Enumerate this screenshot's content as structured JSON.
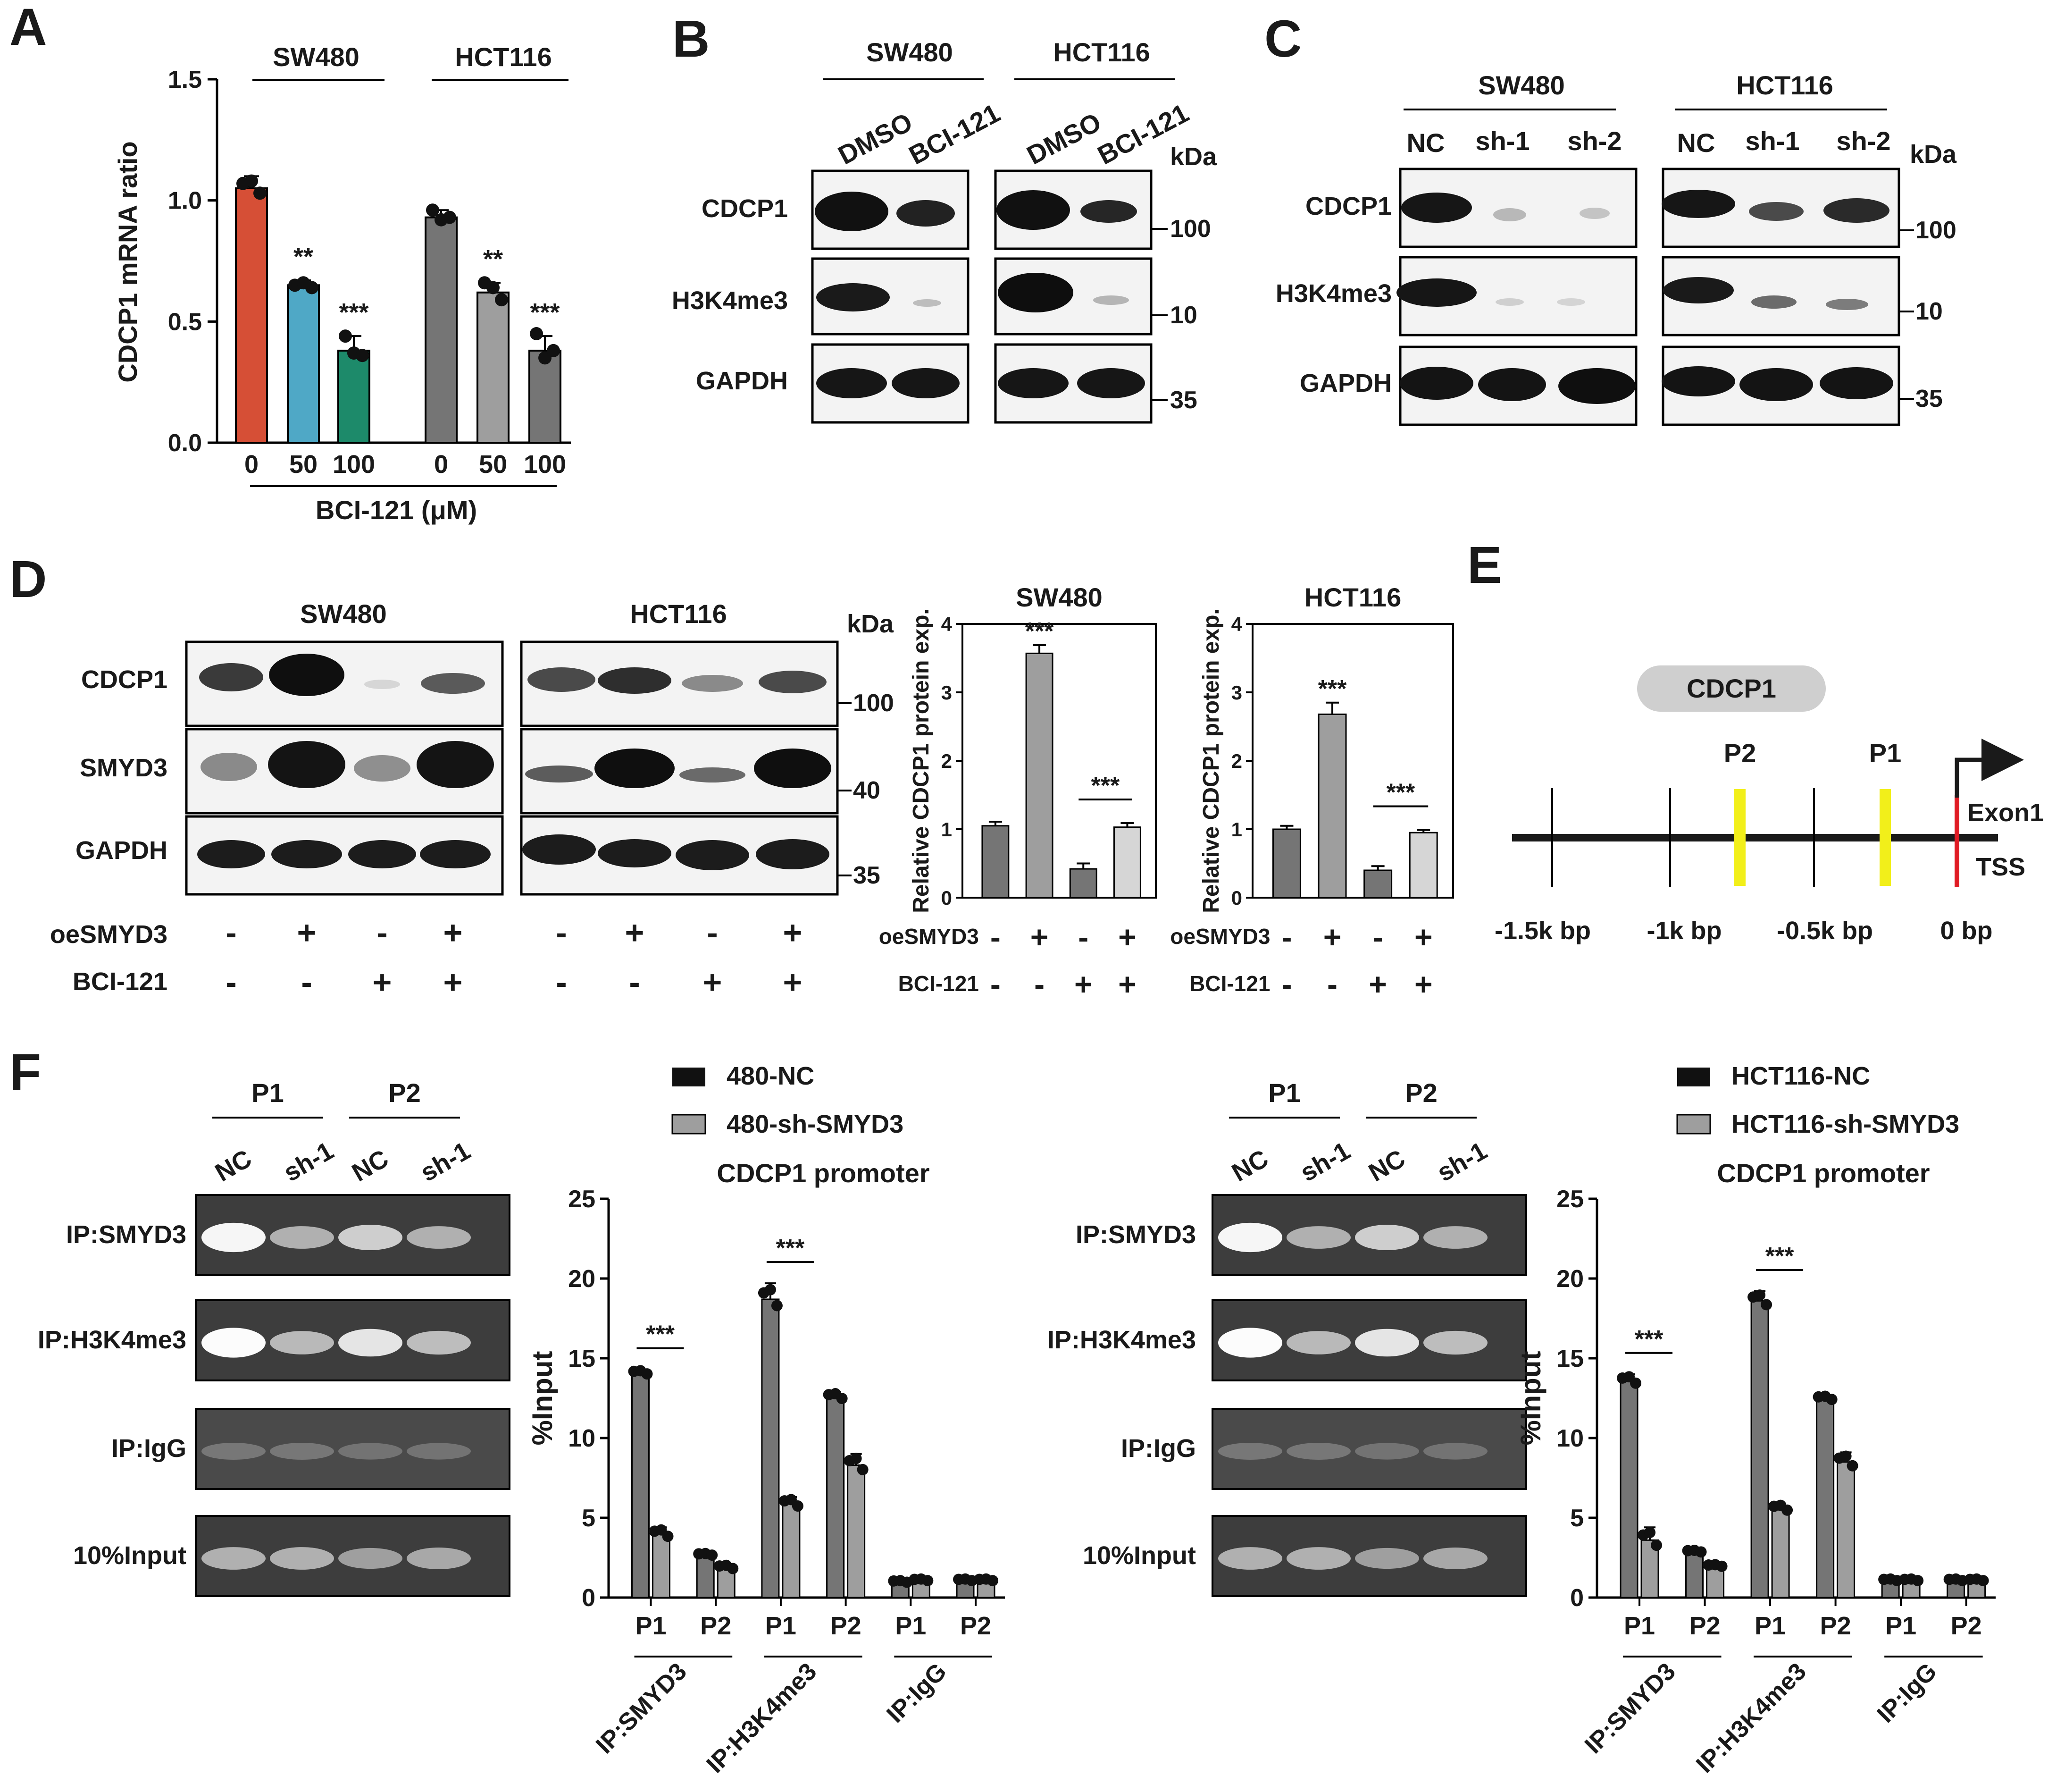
{
  "panel_letters": [
    "A",
    "B",
    "C",
    "D",
    "E",
    "F"
  ],
  "colors": {
    "red": "#d64f36",
    "blue": "#4fa8c6",
    "green": "#1d8a6a",
    "dark_gray": "#757575",
    "mid_gray": "#9e9e9e",
    "light_gray": "#d6d6d6",
    "marker_yellow": "#f2ef1a",
    "tss_red": "#e01b24",
    "pill": "#cfcfcf"
  },
  "panelA": {
    "group_labels": [
      "SW480",
      "HCT116"
    ],
    "ylabel": "CDCP1 mRNA ratio",
    "xlabel": "BCI-121 (μM)",
    "tick_labels": [
      "0.0",
      "0.5",
      "1.0",
      "1.5"
    ]
  },
  "panelB": {
    "groups": [
      "SW480",
      "HCT116"
    ],
    "lanes": [
      "DMSO",
      "BCI-121",
      "DMSO",
      "BCI-121"
    ],
    "rows": [
      "CDCP1",
      "H3K4me3",
      "GAPDH"
    ],
    "kda_title": "kDa",
    "kda": [
      "100",
      "10",
      "35"
    ]
  },
  "panelC": {
    "groups": [
      "SW480",
      "HCT116"
    ],
    "lanes": [
      "NC",
      "sh-1",
      "sh-2",
      "NC",
      "sh-1",
      "sh-2"
    ],
    "rows": [
      "CDCP1",
      "H3K4me3",
      "GAPDH"
    ],
    "kda_title": "kDa",
    "kda": [
      "100",
      "10",
      "35"
    ]
  },
  "panelD": {
    "groups": [
      "SW480",
      "HCT116"
    ],
    "rows": [
      "CDCP1",
      "SMYD3",
      "GAPDH"
    ],
    "kda_title": "kDa",
    "kda": [
      "100",
      "40",
      "35"
    ],
    "treat_labels": [
      "oeSMYD3",
      "BCI-121"
    ],
    "oe_signs": [
      "-",
      "+",
      "-",
      "+"
    ],
    "bci_signs": [
      "-",
      "-",
      "+",
      "+"
    ],
    "bar_ylabel": "Relative CDCP1 protein exp.",
    "bar_titles": [
      "SW480",
      "HCT116"
    ],
    "bar_ticks": [
      "0",
      "1",
      "2",
      "3",
      "4"
    ]
  },
  "panelE": {
    "gene": "CDCP1",
    "primers": [
      "P2",
      "P1"
    ],
    "exon": "Exon1",
    "tss": "TSS",
    "positions": [
      "-1.5k bp",
      "-1k bp",
      "-0.5k bp",
      "0 bp"
    ]
  },
  "panelF": {
    "gel_lane_groups": [
      "P1",
      "P2"
    ],
    "gel_lanes": [
      "NC",
      "sh-1",
      "NC",
      "sh-1"
    ],
    "gel_rows": [
      "IP:SMYD3",
      "IP:H3K4me3",
      "IP:IgG",
      "10%Input"
    ],
    "legend_left": [
      "480-NC",
      "480-sh-SMYD3"
    ],
    "legend_right": [
      "HCT116-NC",
      "HCT116-sh-SMYD3"
    ],
    "chart_title": "CDCP1 promoter",
    "ylabel": "%Input",
    "y_ticks": [
      "0",
      "5",
      "10",
      "15",
      "20",
      "25"
    ],
    "x_ticks": [
      "P1",
      "P2",
      "P1",
      "P2",
      "P1",
      "P2"
    ],
    "group_labels": [
      "IP:SMYD3",
      "IP:H3K4me3",
      "IP:IgG"
    ]
  },
  "significance": [
    "**",
    "***"
  ],
  "chart_data": [
    {
      "type": "bar",
      "panel": "A",
      "groups": [
        "SW480",
        "HCT116"
      ],
      "categories": [
        "0",
        "50",
        "100",
        "0",
        "50",
        "100"
      ],
      "values": [
        1.05,
        0.65,
        0.38,
        0.93,
        0.62,
        0.38
      ],
      "errors": [
        0.05,
        0.02,
        0.06,
        0.03,
        0.04,
        0.06
      ],
      "points": [
        [
          1.07,
          1.08,
          1.03
        ],
        [
          0.65,
          0.66,
          0.64
        ],
        [
          0.44,
          0.37,
          0.36
        ],
        [
          0.96,
          0.92,
          0.93
        ],
        [
          0.66,
          0.64,
          0.59
        ],
        [
          0.45,
          0.35,
          0.38
        ]
      ],
      "significance": [
        "",
        "**",
        "***",
        "",
        "**",
        "***"
      ],
      "ylabel": "CDCP1 mRNA ratio",
      "xlabel": "BCI-121 (μM)",
      "ylim": [
        0,
        1.5
      ]
    },
    {
      "type": "bar",
      "panel": "D-SW480",
      "title": "SW480",
      "categories": [
        "oeSMYD3 - / BCI-121 -",
        "oeSMYD3 + / BCI-121 -",
        "oeSMYD3 - / BCI-121 +",
        "oeSMYD3 + / BCI-121 +"
      ],
      "values": [
        1.05,
        3.57,
        0.42,
        1.03
      ],
      "errors": [
        0.06,
        0.12,
        0.08,
        0.06
      ],
      "significance": [
        "***",
        "***"
      ],
      "ylabel": "Relative CDCP1 protein exp.",
      "ylim": [
        0,
        4
      ]
    },
    {
      "type": "bar",
      "panel": "D-HCT116",
      "title": "HCT116",
      "categories": [
        "oeSMYD3 - / BCI-121 -",
        "oeSMYD3 + / BCI-121 -",
        "oeSMYD3 - / BCI-121 +",
        "oeSMYD3 + / BCI-121 +"
      ],
      "values": [
        1.0,
        2.68,
        0.4,
        0.95
      ],
      "errors": [
        0.05,
        0.17,
        0.06,
        0.04
      ],
      "significance": [
        "***",
        "***"
      ],
      "ylabel": "Relative CDCP1 protein exp.",
      "ylim": [
        0,
        4
      ]
    },
    {
      "type": "bar",
      "panel": "F-left",
      "title": "CDCP1 promoter",
      "categories": [
        "IP:SMYD3 P1",
        "IP:SMYD3 P2",
        "IP:H3K4me3 P1",
        "IP:H3K4me3 P2",
        "IP:IgG P1",
        "IP:IgG P2"
      ],
      "series": [
        {
          "name": "480-NC",
          "values": [
            14.1,
            2.7,
            18.7,
            12.6,
            1.0,
            1.1
          ],
          "errors": [
            0.2,
            0.1,
            1.0,
            0.3,
            0.1,
            0.1
          ]
        },
        {
          "name": "480-sh-SMYD3",
          "values": [
            4.0,
            1.9,
            5.9,
            8.3,
            1.1,
            1.1
          ],
          "errors": [
            0.4,
            0.2,
            0.4,
            0.7,
            0.1,
            0.1
          ]
        }
      ],
      "significance": [
        "***",
        "***"
      ],
      "ylabel": "%Input",
      "ylim": [
        0,
        25
      ]
    },
    {
      "type": "bar",
      "panel": "F-right",
      "title": "CDCP1 promoter",
      "categories": [
        "IP:SMYD3 P1",
        "IP:SMYD3 P2",
        "IP:H3K4me3 P1",
        "IP:H3K4me3 P2",
        "IP:IgG P1",
        "IP:IgG P2"
      ],
      "series": [
        {
          "name": "HCT116-NC",
          "values": [
            13.6,
            2.9,
            18.6,
            12.5,
            1.1,
            1.1
          ],
          "errors": [
            0.4,
            0.1,
            0.6,
            0.2,
            0.1,
            0.1
          ]
        },
        {
          "name": "HCT116-sh-SMYD3",
          "values": [
            3.6,
            2.0,
            5.6,
            8.5,
            1.1,
            1.1
          ],
          "errors": [
            0.8,
            0.1,
            0.3,
            0.6,
            0.1,
            0.1
          ]
        }
      ],
      "significance": [
        "***",
        "***"
      ],
      "ylabel": "%Input",
      "ylim": [
        0,
        25
      ]
    }
  ]
}
